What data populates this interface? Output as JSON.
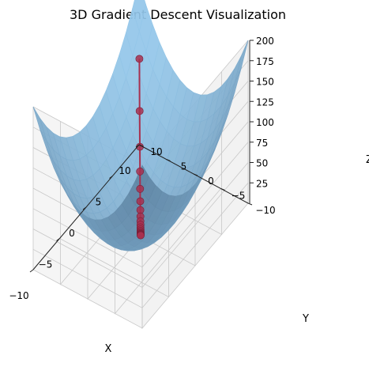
{
  "chart_data": {
    "type": "surface3d",
    "title": "3D Gradient Descent Visualization",
    "xlabel": "X",
    "ylabel": "Y",
    "zlabel": "Z",
    "surface": "x^2 + y^2",
    "xlim": [
      -10,
      10
    ],
    "ylim": [
      -10,
      10
    ],
    "zlim": [
      0,
      200
    ],
    "x_ticks": [
      "−10",
      "−5",
      "0",
      "5",
      "10"
    ],
    "y_ticks": [
      "−10",
      "−5",
      "0",
      "5",
      "10"
    ],
    "z_ticks": [
      "25",
      "50",
      "75",
      "100",
      "125",
      "150",
      "175",
      "200"
    ],
    "path": {
      "x": [
        8.0,
        6.4,
        5.12,
        4.1,
        3.28,
        2.62,
        2.1,
        1.68,
        1.34,
        1.07,
        0.86,
        0.69,
        0.55,
        0.44,
        0.35,
        0.28,
        0.23,
        0.18,
        0.14,
        0.12
      ],
      "y": [
        8.0,
        6.4,
        5.12,
        4.1,
        3.28,
        2.62,
        2.1,
        1.68,
        1.34,
        1.07,
        0.86,
        0.69,
        0.55,
        0.44,
        0.35,
        0.28,
        0.23,
        0.18,
        0.14,
        0.12
      ],
      "z": [
        128,
        81.9,
        52.4,
        33.6,
        21.5,
        13.7,
        8.8,
        5.6,
        3.6,
        2.3,
        1.5,
        0.94,
        0.6,
        0.39,
        0.25,
        0.16,
        0.1,
        0.06,
        0.04,
        0.03
      ]
    },
    "colors": {
      "surface_top": "#8ec3e8",
      "surface_low": "#5a7f9c",
      "path": "#a8304f",
      "pane": "#f2f2f2",
      "grid": "#c8c8c8"
    }
  }
}
